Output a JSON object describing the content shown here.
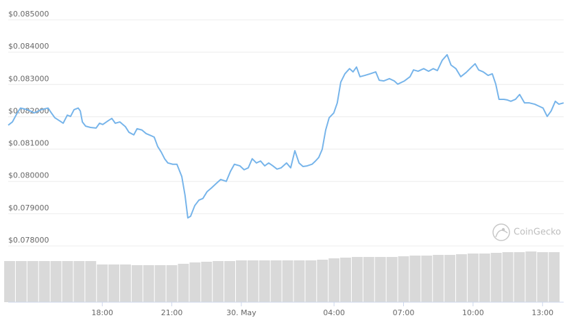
{
  "chart_data": [
    {
      "type": "line",
      "watermark": "CoinGecko",
      "color": "#76b4ea",
      "grid": true,
      "ylim": [
        0.078,
        0.085
      ],
      "yticks": [
        {
          "value": 0.078,
          "label": "$0.078000"
        },
        {
          "value": 0.079,
          "label": "$0.079000"
        },
        {
          "value": 0.08,
          "label": "$0.080000"
        },
        {
          "value": 0.081,
          "label": "$0.081000"
        },
        {
          "value": 0.082,
          "label": "$0.082000"
        },
        {
          "value": 0.083,
          "label": "$0.083000"
        },
        {
          "value": 0.084,
          "label": "$0.084000"
        },
        {
          "value": 0.085,
          "label": "$0.085000"
        }
      ],
      "xlim": [
        13.94,
        37.91
      ],
      "xticks": [
        {
          "value": 18,
          "label": "18:00"
        },
        {
          "value": 21,
          "label": "21:00"
        },
        {
          "value": 24,
          "label": "30. May"
        },
        {
          "value": 28,
          "label": "04:00"
        },
        {
          "value": 31,
          "label": "07:00"
        },
        {
          "value": 34,
          "label": "10:00"
        },
        {
          "value": 37,
          "label": "13:00"
        }
      ],
      "x": [
        13.94,
        14.12,
        14.33,
        14.47,
        14.77,
        15.07,
        15.36,
        15.66,
        15.8,
        15.95,
        16.19,
        16.31,
        16.49,
        16.63,
        16.78,
        16.96,
        17.05,
        17.14,
        17.28,
        17.49,
        17.73,
        17.88,
        18.02,
        18.26,
        18.41,
        18.56,
        18.76,
        19.0,
        19.15,
        19.36,
        19.5,
        19.71,
        19.89,
        20.09,
        20.24,
        20.39,
        20.54,
        20.69,
        20.83,
        21.04,
        21.22,
        21.43,
        21.57,
        21.69,
        21.81,
        21.99,
        22.17,
        22.34,
        22.52,
        22.7,
        22.91,
        23.11,
        23.35,
        23.53,
        23.7,
        23.94,
        24.12,
        24.3,
        24.47,
        24.65,
        24.83,
        25.01,
        25.18,
        25.36,
        25.54,
        25.72,
        25.95,
        26.13,
        26.31,
        26.49,
        26.66,
        26.84,
        27.05,
        27.2,
        27.34,
        27.49,
        27.64,
        27.79,
        27.99,
        28.14,
        28.29,
        28.47,
        28.67,
        28.82,
        28.97,
        29.12,
        29.33,
        29.56,
        29.8,
        29.95,
        30.15,
        30.39,
        30.6,
        30.75,
        31.04,
        31.28,
        31.43,
        31.63,
        31.87,
        32.08,
        32.28,
        32.46,
        32.67,
        32.88,
        33.05,
        33.26,
        33.47,
        33.7,
        33.94,
        34.09,
        34.24,
        34.44,
        34.65,
        34.83,
        34.98,
        35.12,
        35.33,
        35.48,
        35.63,
        35.83,
        36.01,
        36.22,
        36.43,
        36.66,
        36.84,
        37.02,
        37.2,
        37.37,
        37.55,
        37.7,
        37.91
      ],
      "values": [
        0.08174,
        0.08184,
        0.08212,
        0.08227,
        0.08222,
        0.08212,
        0.08222,
        0.08227,
        0.08212,
        0.08197,
        0.08186,
        0.0818,
        0.08205,
        0.08201,
        0.08222,
        0.08227,
        0.08218,
        0.08184,
        0.08171,
        0.08167,
        0.08165,
        0.0818,
        0.08176,
        0.08188,
        0.08195,
        0.0818,
        0.08184,
        0.08169,
        0.08152,
        0.08144,
        0.08163,
        0.08159,
        0.08148,
        0.08142,
        0.08137,
        0.08108,
        0.08091,
        0.0807,
        0.08057,
        0.08053,
        0.08053,
        0.08015,
        0.07957,
        0.07887,
        0.07892,
        0.07925,
        0.07942,
        0.07947,
        0.07968,
        0.07979,
        0.07993,
        0.08006,
        0.08,
        0.08031,
        0.08053,
        0.08048,
        0.08036,
        0.08042,
        0.0807,
        0.08057,
        0.08063,
        0.08048,
        0.08057,
        0.08048,
        0.08038,
        0.08042,
        0.08057,
        0.08042,
        0.08095,
        0.08057,
        0.08046,
        0.08048,
        0.08053,
        0.08063,
        0.08074,
        0.08099,
        0.08159,
        0.08197,
        0.08212,
        0.08243,
        0.08307,
        0.08333,
        0.08349,
        0.08339,
        0.08354,
        0.08324,
        0.08328,
        0.08333,
        0.08339,
        0.08313,
        0.08311,
        0.08318,
        0.08311,
        0.08301,
        0.08311,
        0.08324,
        0.08345,
        0.08341,
        0.08349,
        0.08341,
        0.08349,
        0.08343,
        0.08375,
        0.08392,
        0.0836,
        0.08349,
        0.08324,
        0.08337,
        0.08354,
        0.08364,
        0.08345,
        0.08339,
        0.08328,
        0.08333,
        0.08301,
        0.08254,
        0.08254,
        0.08252,
        0.08248,
        0.08254,
        0.08269,
        0.08243,
        0.08243,
        0.08239,
        0.08233,
        0.08227,
        0.08201,
        0.08218,
        0.08248,
        0.08239,
        0.08243
      ]
    },
    {
      "type": "bar",
      "color": "#d9d9d9",
      "ylim": [
        0,
        80
      ],
      "xlim": [
        13.94,
        37.91
      ],
      "x": [
        14,
        14.5,
        15,
        15.5,
        16,
        16.5,
        17,
        17.5,
        18,
        18.5,
        19,
        19.5,
        20,
        20.5,
        21,
        21.5,
        22,
        22.5,
        23,
        23.5,
        24,
        24.5,
        25,
        25.5,
        26,
        26.5,
        27,
        27.5,
        28,
        28.5,
        29,
        29.5,
        30,
        30.5,
        31,
        31.5,
        32,
        32.5,
        33,
        33.5,
        34,
        34.5,
        35,
        35.5,
        36,
        36.5,
        37,
        37.5
      ],
      "values": [
        60,
        60,
        60,
        60,
        60,
        60,
        60,
        60,
        55,
        55,
        55,
        54,
        54,
        54,
        54,
        56,
        58,
        59,
        60,
        60,
        61,
        61,
        61,
        61,
        61,
        61,
        61,
        62,
        64,
        65,
        66,
        66,
        66,
        66,
        67,
        68,
        68,
        69,
        69,
        70,
        71,
        71,
        72,
        73,
        73,
        74,
        73,
        73
      ]
    }
  ]
}
